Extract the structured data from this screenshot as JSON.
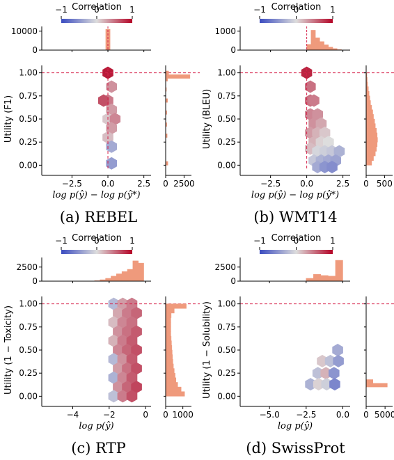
{
  "colorbar": {
    "label": "Correlation",
    "ticks": [
      "−1",
      "0",
      "1"
    ],
    "colormap": "coolwarm",
    "cold": "#3b4cc0",
    "neutral": "#dddddd",
    "warm": "#b40426"
  },
  "accent": {
    "refline": "#d6224a",
    "hist": "#ef9a7c"
  },
  "chart_data": [
    {
      "type": "hexbin",
      "caption": "(a) REBEL",
      "xlabel": "log p(ŷ) − log p(ŷ*)",
      "ylabel": "Utility (F1)",
      "xlim": [
        -4.6,
        3.0
      ],
      "ylim": [
        -0.05,
        1.05
      ],
      "xticks": [
        {
          "v": -2.5,
          "t": "−2.5"
        },
        {
          "v": 0,
          "t": "0.0"
        },
        {
          "v": 2.5,
          "t": "2.5"
        }
      ],
      "yticks": [
        {
          "v": 0,
          "t": "0.00"
        },
        {
          "v": 0.25,
          "t": "0.25"
        },
        {
          "v": 0.5,
          "t": "0.50"
        },
        {
          "v": 0.75,
          "t": "0.75"
        },
        {
          "v": 1.0,
          "t": "1.00"
        }
      ],
      "top_hist": {
        "ylim": [
          0,
          12500
        ],
        "ticks": [
          {
            "v": 0,
            "t": "0"
          },
          {
            "v": 10000,
            "t": "10000"
          }
        ],
        "bins": [
          [
            -0.15,
            0.15,
            11000
          ]
        ]
      },
      "right_hist": {
        "xlim": [
          0,
          3500
        ],
        "ticks": [
          {
            "v": 0,
            "t": "0"
          },
          {
            "v": 2500,
            "t": "2500"
          }
        ],
        "bins": [
          [
            0.0,
            0.04,
            300
          ],
          [
            0.3,
            0.34,
            200
          ],
          [
            0.42,
            0.46,
            150
          ],
          [
            0.55,
            0.59,
            150
          ],
          [
            0.68,
            0.72,
            250
          ],
          [
            0.8,
            0.84,
            100
          ],
          [
            0.91,
            0.95,
            250
          ],
          [
            0.94,
            0.98,
            3300
          ],
          [
            0.98,
            1.02,
            400
          ]
        ]
      },
      "ref_x": 0,
      "ref_y": 1.0,
      "hexes": [
        {
          "x": 0.0,
          "y": 1.0,
          "c": 0.9
        },
        {
          "x": 0.25,
          "y": 0.85,
          "c": 0.35
        },
        {
          "x": 0.0,
          "y": 0.7,
          "c": 0.45
        },
        {
          "x": -0.3,
          "y": 0.7,
          "c": 0.65
        },
        {
          "x": 0.25,
          "y": 0.6,
          "c": 0.3
        },
        {
          "x": 0.0,
          "y": 0.5,
          "c": 0.1
        },
        {
          "x": 0.5,
          "y": 0.5,
          "c": 0.4
        },
        {
          "x": 0.25,
          "y": 0.4,
          "c": 0.3
        },
        {
          "x": 0.0,
          "y": 0.3,
          "c": 0.15
        },
        {
          "x": 0.25,
          "y": 0.2,
          "c": -0.35
        },
        {
          "x": 0.25,
          "y": 0.02,
          "c": -0.45
        }
      ]
    },
    {
      "type": "hexbin",
      "caption": "(b) WMT14",
      "xlabel": "log p(ŷ) − log p(ŷ*)",
      "ylabel": "Utility (BLEU)",
      "xlim": [
        -4.6,
        3.0
      ],
      "ylim": [
        -0.05,
        1.05
      ],
      "xticks": [
        {
          "v": -2.5,
          "t": "−2.5"
        },
        {
          "v": 0,
          "t": "0.0"
        },
        {
          "v": 2.5,
          "t": "2.5"
        }
      ],
      "yticks": [
        {
          "v": 0,
          "t": "0.00"
        },
        {
          "v": 0.25,
          "t": "0.25"
        },
        {
          "v": 0.5,
          "t": "0.50"
        },
        {
          "v": 0.75,
          "t": "0.75"
        },
        {
          "v": 1.0,
          "t": "1.00"
        }
      ],
      "top_hist": {
        "ylim": [
          0,
          1250
        ],
        "ticks": [
          {
            "v": 0,
            "t": "0"
          },
          {
            "v": 1000,
            "t": "1000"
          }
        ],
        "bins": [
          [
            0.0,
            0.3,
            300
          ],
          [
            0.3,
            0.6,
            1050
          ],
          [
            0.6,
            0.9,
            650
          ],
          [
            0.9,
            1.2,
            450
          ],
          [
            1.2,
            1.5,
            280
          ],
          [
            1.5,
            1.8,
            160
          ],
          [
            1.8,
            2.1,
            80
          ],
          [
            2.1,
            2.4,
            30
          ]
        ]
      },
      "right_hist": {
        "xlim": [
          0,
          720
        ],
        "ticks": [
          {
            "v": 0,
            "t": "0"
          },
          {
            "v": 500,
            "t": "500"
          }
        ],
        "bins": [
          [
            0.0,
            0.05,
            150
          ],
          [
            0.05,
            0.1,
            200
          ],
          [
            0.1,
            0.15,
            250
          ],
          [
            0.15,
            0.2,
            280
          ],
          [
            0.2,
            0.25,
            300
          ],
          [
            0.25,
            0.3,
            310
          ],
          [
            0.3,
            0.35,
            300
          ],
          [
            0.35,
            0.4,
            280
          ],
          [
            0.4,
            0.45,
            250
          ],
          [
            0.45,
            0.5,
            230
          ],
          [
            0.5,
            0.55,
            200
          ],
          [
            0.55,
            0.6,
            180
          ],
          [
            0.6,
            0.65,
            150
          ],
          [
            0.65,
            0.7,
            120
          ],
          [
            0.7,
            0.75,
            100
          ],
          [
            0.75,
            0.8,
            80
          ],
          [
            0.8,
            0.85,
            60
          ],
          [
            0.85,
            0.9,
            40
          ],
          [
            0.9,
            0.95,
            30
          ],
          [
            0.95,
            1.0,
            20
          ]
        ]
      },
      "ref_x": 0,
      "ref_y": 1.0,
      "hexes": [
        {
          "x": 0.0,
          "y": 1.0,
          "c": 0.85
        },
        {
          "x": 0.25,
          "y": 0.85,
          "c": 0.5
        },
        {
          "x": 0.25,
          "y": 0.7,
          "c": 0.5
        },
        {
          "x": 0.5,
          "y": 0.7,
          "c": 0.45
        },
        {
          "x": 0.25,
          "y": 0.55,
          "c": 0.4
        },
        {
          "x": 0.75,
          "y": 0.55,
          "c": 0.35
        },
        {
          "x": 0.5,
          "y": 0.45,
          "c": 0.35
        },
        {
          "x": 1.0,
          "y": 0.45,
          "c": 0.25
        },
        {
          "x": 0.25,
          "y": 0.35,
          "c": 0.3
        },
        {
          "x": 0.75,
          "y": 0.35,
          "c": 0.2
        },
        {
          "x": 1.25,
          "y": 0.35,
          "c": 0.1
        },
        {
          "x": 0.5,
          "y": 0.25,
          "c": 0.2
        },
        {
          "x": 1.0,
          "y": 0.25,
          "c": 0.05
        },
        {
          "x": 1.5,
          "y": 0.25,
          "c": 0.0
        },
        {
          "x": 0.25,
          "y": 0.18,
          "c": 0.15
        },
        {
          "x": 0.75,
          "y": 0.15,
          "c": -0.05
        },
        {
          "x": 1.25,
          "y": 0.15,
          "c": -0.1
        },
        {
          "x": 1.75,
          "y": 0.15,
          "c": -0.15
        },
        {
          "x": 2.25,
          "y": 0.15,
          "c": -0.3
        },
        {
          "x": 0.5,
          "y": 0.05,
          "c": -0.15
        },
        {
          "x": 1.0,
          "y": 0.05,
          "c": -0.3
        },
        {
          "x": 1.5,
          "y": 0.05,
          "c": -0.35
        },
        {
          "x": 2.0,
          "y": 0.05,
          "c": -0.4
        },
        {
          "x": 0.75,
          "y": -0.02,
          "c": -0.35
        },
        {
          "x": 1.25,
          "y": -0.02,
          "c": -0.5
        },
        {
          "x": 1.75,
          "y": -0.02,
          "c": -0.55
        }
      ]
    },
    {
      "type": "hexbin",
      "caption": "(c) RTP",
      "xlabel": "log p(ŷ)",
      "ylabel": "Utility (1 − Toxicity)",
      "xlim": [
        -5.7,
        0.3
      ],
      "ylim": [
        -0.05,
        1.05
      ],
      "xticks": [
        {
          "v": -4,
          "t": "−4"
        },
        {
          "v": -2,
          "t": "−2"
        },
        {
          "v": 0,
          "t": "0"
        }
      ],
      "yticks": [
        {
          "v": 0,
          "t": "0.00"
        },
        {
          "v": 0.25,
          "t": "0.25"
        },
        {
          "v": 0.5,
          "t": "0.50"
        },
        {
          "v": 0.75,
          "t": "0.75"
        },
        {
          "v": 1.0,
          "t": "1.00"
        }
      ],
      "top_hist": {
        "ylim": [
          0,
          4200
        ],
        "ticks": [
          {
            "v": 0,
            "t": "0"
          },
          {
            "v": 2500,
            "t": "2500"
          }
        ],
        "bins": [
          [
            -2.8,
            -2.5,
            100
          ],
          [
            -2.5,
            -2.2,
            250
          ],
          [
            -2.2,
            -1.9,
            500
          ],
          [
            -1.9,
            -1.6,
            900
          ],
          [
            -1.6,
            -1.3,
            1300
          ],
          [
            -1.3,
            -1.0,
            1700
          ],
          [
            -1.0,
            -0.7,
            2100
          ],
          [
            -0.7,
            -0.4,
            3600
          ],
          [
            -0.4,
            -0.1,
            3200
          ]
        ]
      },
      "right_hist": {
        "xlim": [
          0,
          1500
        ],
        "ticks": [
          {
            "v": 0,
            "t": "0"
          },
          {
            "v": 1000,
            "t": "1000"
          }
        ],
        "bins": [
          [
            0.0,
            0.05,
            1100
          ],
          [
            0.05,
            0.1,
            900
          ],
          [
            0.1,
            0.15,
            700
          ],
          [
            0.15,
            0.2,
            600
          ],
          [
            0.2,
            0.25,
            550
          ],
          [
            0.25,
            0.3,
            500
          ],
          [
            0.3,
            0.35,
            450
          ],
          [
            0.35,
            0.4,
            420
          ],
          [
            0.4,
            0.45,
            400
          ],
          [
            0.45,
            0.5,
            380
          ],
          [
            0.5,
            0.55,
            360
          ],
          [
            0.55,
            0.6,
            340
          ],
          [
            0.6,
            0.65,
            320
          ],
          [
            0.65,
            0.7,
            300
          ],
          [
            0.7,
            0.75,
            300
          ],
          [
            0.75,
            0.8,
            300
          ],
          [
            0.8,
            0.85,
            300
          ],
          [
            0.85,
            0.9,
            320
          ],
          [
            0.9,
            0.95,
            500
          ],
          [
            0.95,
            1.0,
            1200
          ]
        ]
      },
      "ref_x": null,
      "ref_y": 1.0,
      "hexes": [
        {
          "x": -1.75,
          "y": 1.0,
          "c": -0.25
        },
        {
          "x": -1.25,
          "y": 1.0,
          "c": 0.3
        },
        {
          "x": -0.75,
          "y": 1.0,
          "c": 0.45
        },
        {
          "x": -1.5,
          "y": 0.9,
          "c": 0.25
        },
        {
          "x": -1.0,
          "y": 0.9,
          "c": 0.45
        },
        {
          "x": -0.5,
          "y": 0.9,
          "c": 0.55
        },
        {
          "x": -1.75,
          "y": 0.8,
          "c": 0.15
        },
        {
          "x": -1.25,
          "y": 0.8,
          "c": 0.4
        },
        {
          "x": -0.75,
          "y": 0.8,
          "c": 0.5
        },
        {
          "x": -1.5,
          "y": 0.7,
          "c": 0.35
        },
        {
          "x": -1.0,
          "y": 0.7,
          "c": 0.5
        },
        {
          "x": -0.5,
          "y": 0.7,
          "c": 0.6
        },
        {
          "x": -1.75,
          "y": 0.6,
          "c": 0.2
        },
        {
          "x": -1.25,
          "y": 0.6,
          "c": 0.45
        },
        {
          "x": -0.75,
          "y": 0.6,
          "c": 0.6
        },
        {
          "x": -1.5,
          "y": 0.5,
          "c": 0.4
        },
        {
          "x": -1.0,
          "y": 0.5,
          "c": 0.55
        },
        {
          "x": -0.5,
          "y": 0.5,
          "c": 0.65
        },
        {
          "x": -1.75,
          "y": 0.4,
          "c": -0.25
        },
        {
          "x": -1.25,
          "y": 0.4,
          "c": 0.35
        },
        {
          "x": -0.75,
          "y": 0.4,
          "c": 0.6
        },
        {
          "x": -1.5,
          "y": 0.3,
          "c": 0.3
        },
        {
          "x": -1.0,
          "y": 0.3,
          "c": 0.5
        },
        {
          "x": -0.5,
          "y": 0.3,
          "c": 0.65
        },
        {
          "x": -1.75,
          "y": 0.2,
          "c": -0.3
        },
        {
          "x": -1.25,
          "y": 0.2,
          "c": 0.4
        },
        {
          "x": -0.75,
          "y": 0.2,
          "c": 0.6
        },
        {
          "x": -1.5,
          "y": 0.1,
          "c": 0.35
        },
        {
          "x": -1.0,
          "y": 0.1,
          "c": 0.55
        },
        {
          "x": -0.5,
          "y": 0.1,
          "c": 0.7
        },
        {
          "x": -1.75,
          "y": 0.0,
          "c": -0.2
        },
        {
          "x": -1.25,
          "y": 0.0,
          "c": 0.45
        },
        {
          "x": -0.75,
          "y": 0.0,
          "c": 0.65
        }
      ]
    },
    {
      "type": "hexbin",
      "caption": "(d) SwissProt",
      "xlabel": "log p(ŷ)",
      "ylabel": "Utility (1 − Solubility)",
      "xlim": [
        -7.0,
        0.5
      ],
      "ylim": [
        -0.05,
        1.05
      ],
      "xticks": [
        {
          "v": -5,
          "t": "−5.0"
        },
        {
          "v": -2.5,
          "t": "−2.5"
        },
        {
          "v": 0,
          "t": "0.0"
        }
      ],
      "yticks": [
        {
          "v": 0,
          "t": "0.00"
        },
        {
          "v": 0.25,
          "t": "0.25"
        },
        {
          "v": 0.5,
          "t": "0.50"
        },
        {
          "v": 0.75,
          "t": "0.75"
        },
        {
          "v": 1.0,
          "t": "1.00"
        }
      ],
      "top_hist": {
        "ylim": [
          0,
          4200
        ],
        "ticks": [
          {
            "v": 0,
            "t": "0"
          },
          {
            "v": 2500,
            "t": "2500"
          }
        ],
        "bins": [
          [
            -2.5,
            -2.0,
            500
          ],
          [
            -2.0,
            -1.5,
            1200
          ],
          [
            -1.5,
            -1.0,
            1000
          ],
          [
            -1.0,
            -0.5,
            900
          ],
          [
            -0.5,
            0.0,
            3700
          ]
        ]
      },
      "right_hist": {
        "xlim": [
          0,
          7000
        ],
        "ticks": [
          {
            "v": 0,
            "t": "0"
          },
          {
            "v": 5000,
            "t": "5000"
          }
        ],
        "bins": [
          [
            0.1,
            0.14,
            5600
          ],
          [
            0.14,
            0.18,
            1800
          ]
        ]
      },
      "ref_x": null,
      "ref_y": 1.0,
      "hexes": [
        {
          "x": -0.35,
          "y": 0.5,
          "c": -0.35
        },
        {
          "x": -1.4,
          "y": 0.38,
          "c": 0.1
        },
        {
          "x": -0.85,
          "y": 0.38,
          "c": -0.2
        },
        {
          "x": -0.3,
          "y": 0.38,
          "c": -0.45
        },
        {
          "x": -1.7,
          "y": 0.25,
          "c": -0.2
        },
        {
          "x": -1.15,
          "y": 0.25,
          "c": 0.2
        },
        {
          "x": -0.6,
          "y": 0.25,
          "c": -0.5
        },
        {
          "x": -2.2,
          "y": 0.13,
          "c": -0.3
        },
        {
          "x": -1.65,
          "y": 0.13,
          "c": 0.05
        },
        {
          "x": -1.1,
          "y": 0.13,
          "c": -0.1
        },
        {
          "x": -0.55,
          "y": 0.13,
          "c": -0.6
        }
      ]
    }
  ]
}
